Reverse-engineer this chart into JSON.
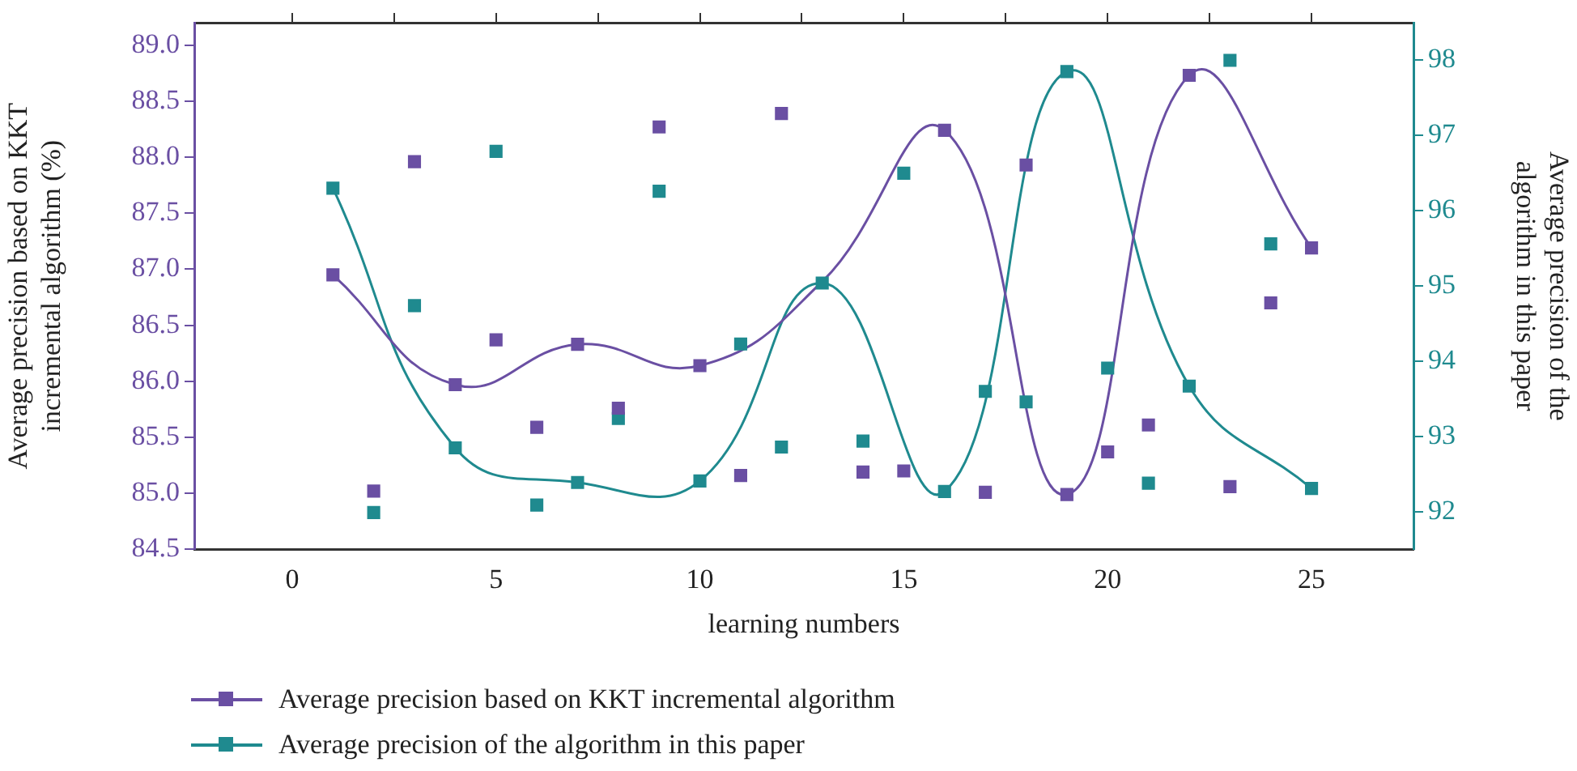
{
  "chart_data": {
    "type": "scatter",
    "xlabel": "learning numbers",
    "ylabel": "Average precision based on KKT\nincremental algorithm (%)",
    "y2label": "Average precision of the\nalgorithm in this paper",
    "x": [
      1,
      2,
      3,
      4,
      5,
      6,
      7,
      8,
      9,
      10,
      11,
      12,
      13,
      14,
      15,
      16,
      17,
      18,
      19,
      20,
      21,
      22,
      23,
      24,
      25
    ],
    "series": [
      {
        "name": "Average precision based on KKT incremental algorithm",
        "color": "#6a4fa3",
        "values": [
          86.95,
          85.02,
          87.96,
          85.97,
          86.37,
          85.59,
          86.33,
          85.76,
          88.27,
          86.14,
          85.16,
          88.39,
          null,
          85.19,
          85.2,
          88.24,
          85.01,
          87.93,
          84.99,
          85.37,
          85.61,
          88.73,
          85.06,
          86.7,
          87.19
        ]
      },
      {
        "name": "Average precision of the algorithm in this paper",
        "color": "#1f8a8f",
        "axis": "y2",
        "values": [
          96.3,
          91.99,
          94.74,
          92.85,
          96.79,
          92.09,
          92.39,
          93.24,
          96.26,
          92.41,
          94.23,
          92.86,
          95.04,
          92.94,
          96.5,
          92.27,
          93.6,
          93.46,
          97.85,
          93.91,
          92.38,
          93.67,
          98.0,
          95.56,
          92.31
        ]
      },
      {
        "type": "line",
        "marker": "none",
        "color": "#6a4fa3",
        "x": [
          1,
          4,
          7,
          10,
          13,
          16,
          19,
          22,
          25
        ],
        "values": [
          86.95,
          85.97,
          86.33,
          86.14,
          86.89,
          88.24,
          84.99,
          88.73,
          87.19
        ]
      },
      {
        "type": "line",
        "marker": "none",
        "color": "#1f8a8f",
        "axis": "y2",
        "x": [
          1,
          4,
          7,
          10,
          13,
          16,
          19,
          22,
          25
        ],
        "values": [
          96.3,
          92.85,
          92.39,
          92.41,
          95.04,
          92.27,
          97.85,
          93.67,
          92.31
        ]
      }
    ],
    "xlim": [
      -2.4,
      27.5
    ],
    "xticks": [
      0,
      {
        "value": 2.5,
        "label": null
      },
      5,
      {
        "value": 7.5,
        "label": null
      },
      10,
      {
        "value": 12.5,
        "label": null
      },
      15,
      {
        "value": 17.5,
        "label": null
      },
      20,
      {
        "value": 22.5,
        "label": null
      },
      25
    ],
    "ylim": [
      84.5,
      89.2
    ],
    "yticks": [
      {
        "value": 84.5,
        "label": "84.5"
      },
      {
        "value": 85,
        "label": "85.0"
      },
      {
        "value": 85.5,
        "label": "85.5"
      },
      {
        "value": 86,
        "label": "86.0"
      },
      {
        "value": 86.5,
        "label": "86.5"
      },
      {
        "value": 87,
        "label": "87.0"
      },
      {
        "value": 87.5,
        "label": "87.5"
      },
      {
        "value": 88,
        "label": "88.0"
      },
      {
        "value": 88.5,
        "label": "88.5"
      },
      {
        "value": 89,
        "label": "89.0"
      }
    ],
    "y2lim": [
      91.5,
      98.5
    ],
    "y2ticks": [
      92,
      93,
      94,
      95,
      96,
      97,
      98
    ],
    "grid": false,
    "legend": "bottom",
    "marker": "square",
    "line_style": "solid"
  }
}
